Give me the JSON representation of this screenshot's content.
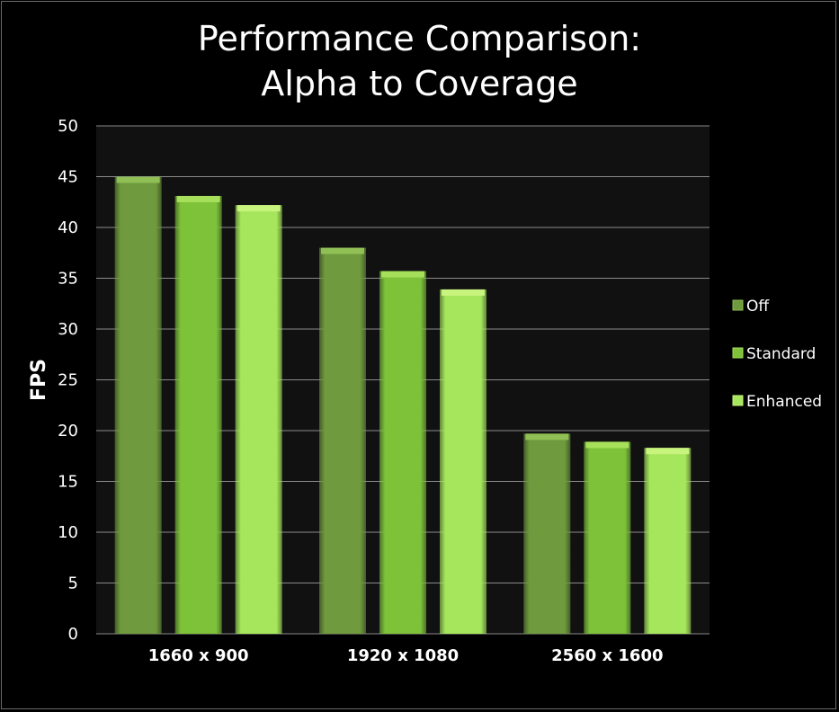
{
  "chart_data": {
    "type": "bar",
    "title_lines": [
      "Performance Comparison:",
      "Alpha to Coverage"
    ],
    "ylabel": "FPS",
    "xlabel": "",
    "categories": [
      "1660 x 900",
      "1920 x 1080",
      "2560 x 1600"
    ],
    "series": [
      {
        "name": "Off",
        "values": [
          45,
          38,
          19.7
        ],
        "color": "#6f9a3e",
        "top_color": "#8fbf55"
      },
      {
        "name": "Standard",
        "values": [
          43.1,
          35.7,
          18.9
        ],
        "color": "#7ec23a",
        "top_color": "#a6e05a"
      },
      {
        "name": "Enhanced",
        "values": [
          42.2,
          33.9,
          18.3
        ],
        "color": "#a6e65c",
        "top_color": "#c8f47e"
      }
    ],
    "ylim": [
      0,
      50
    ],
    "yticks": [
      "0",
      "5",
      "10",
      "15",
      "20",
      "25",
      "30",
      "35",
      "40",
      "45",
      "50"
    ],
    "grid": true,
    "legend_position": "right",
    "colors": {
      "background": "#000000",
      "plot_background": "#111111",
      "gridline": "#8a8a8a",
      "text": "#ffffff"
    }
  }
}
